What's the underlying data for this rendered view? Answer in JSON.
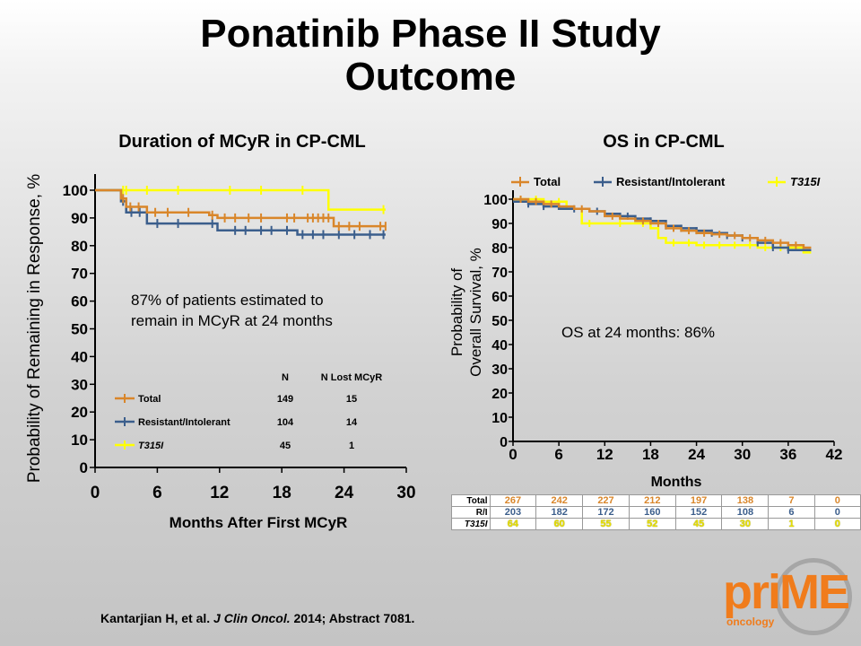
{
  "title_line1": "Ponatinib Phase II Study",
  "title_line2": "Outcome",
  "citation": {
    "authors": "Kantarjian H, et al.",
    "journal": "J Clin Oncol.",
    "rest": "2014; Abstract 7081."
  },
  "logo": {
    "text": "priME",
    "sub": "oncology"
  },
  "colors": {
    "total": "#d9862a",
    "ri": "#3b5e8c",
    "t315i": "#ffff00"
  },
  "chart_data": [
    {
      "type": "line",
      "title": "Duration of MCyR in CP-CML",
      "xlabel": "Months After First MCyR",
      "ylabel": "Probability of Remaining in Response, %",
      "xlim": [
        0,
        30
      ],
      "ylim": [
        0,
        100
      ],
      "xticks": [
        0,
        6,
        12,
        18,
        24,
        30
      ],
      "yticks": [
        0,
        10,
        20,
        30,
        40,
        50,
        60,
        70,
        80,
        90,
        100
      ],
      "annotation": "87% of patients estimated to remain in MCyR at 24 months",
      "annotation_line1": "87% of patients estimated to",
      "annotation_line2": "remain in MCyR at 24 months",
      "legend_headers": {
        "n": "N",
        "lost": "N Lost MCyR"
      },
      "series": [
        {
          "name": "Total",
          "n": "149",
          "lost": "15",
          "x": [
            0,
            2.5,
            3.0,
            5.0,
            11.0,
            11.8,
            20.0,
            23.0,
            28.0
          ],
          "y": [
            100,
            97,
            94,
            92,
            91,
            90,
            90,
            87,
            87
          ],
          "censor": [
            2.7,
            3.4,
            4.2,
            5.8,
            7.0,
            9.0,
            11.3,
            12.5,
            13.5,
            14.8,
            16.0,
            18.5,
            19.2,
            20.5,
            21.0,
            21.5,
            22.0,
            22.5,
            23.5,
            24.5,
            25.5,
            27.5,
            28.0
          ]
        },
        {
          "name": "Resistant/Intolerant",
          "n": "104",
          "lost": "14",
          "x": [
            0,
            2.5,
            3.0,
            5.0,
            11.0,
            11.8,
            19.0,
            19.5,
            28.0
          ],
          "y": [
            100,
            96,
            92,
            88,
            88,
            85.5,
            85.5,
            84,
            84
          ],
          "censor": [
            2.7,
            3.5,
            4.3,
            6.0,
            8.0,
            11.3,
            13.5,
            14.5,
            16.0,
            17.0,
            18.5,
            20.0,
            21.0,
            22.0,
            23.5,
            25.0,
            26.5,
            27.8
          ]
        },
        {
          "name": "T315I",
          "n": "45",
          "lost": "1",
          "x": [
            0,
            22.5,
            28.0
          ],
          "y": [
            100,
            93,
            93
          ],
          "censor": [
            2.7,
            3.0,
            5.0,
            8.0,
            13.0,
            16.0,
            20.0,
            27.8
          ]
        }
      ]
    },
    {
      "type": "line",
      "title": "OS in CP-CML",
      "xlabel": "Months",
      "ylabel": "Probability of Overall Survival, %",
      "ylabel_line1": "Probability of",
      "ylabel_line2": "Overall Survival, %",
      "xlim": [
        0,
        42
      ],
      "ylim": [
        0,
        100
      ],
      "xticks": [
        0,
        6,
        12,
        18,
        24,
        30,
        36,
        42
      ],
      "yticks": [
        0,
        10,
        20,
        30,
        40,
        50,
        60,
        70,
        80,
        90,
        100
      ],
      "annotation": "OS at 24 months: 86%",
      "legend": "top",
      "series": [
        {
          "name": "Total",
          "x": [
            0,
            2,
            4,
            6,
            8,
            10,
            12,
            14,
            16,
            18,
            20,
            22,
            24,
            26,
            28,
            30,
            32,
            34,
            36,
            38,
            39
          ],
          "y": [
            100,
            99,
            98,
            97,
            96,
            95,
            93,
            92,
            91,
            90,
            88,
            87,
            86,
            85.5,
            85,
            84,
            83,
            82,
            81,
            80,
            80
          ],
          "censor": [
            1,
            3,
            5,
            9,
            13,
            17,
            19,
            21,
            23,
            25,
            27,
            29,
            31,
            33,
            35,
            37
          ]
        },
        {
          "name": "Resistant/Intolerant",
          "x": [
            0,
            2,
            4,
            6,
            8,
            10,
            12,
            14,
            16,
            18,
            20,
            22,
            24,
            26,
            28,
            30,
            32,
            34,
            36,
            38,
            39
          ],
          "y": [
            99,
            98,
            97,
            96,
            96,
            95,
            94,
            93,
            92,
            91,
            89,
            88,
            87,
            86,
            85,
            84,
            82,
            80,
            79,
            79,
            79
          ],
          "censor": [
            2,
            4,
            8,
            11,
            15,
            18,
            20,
            22,
            24,
            26,
            28,
            30,
            32,
            34,
            36
          ]
        },
        {
          "name": "T315I",
          "x": [
            0,
            4,
            7,
            9,
            12,
            15,
            18,
            19,
            20,
            22,
            24,
            28,
            32,
            36,
            38,
            39
          ],
          "y": [
            100,
            99,
            96,
            90,
            90,
            90,
            88,
            84,
            82,
            82,
            81,
            81,
            80,
            80,
            78,
            78
          ],
          "censor": [
            1,
            3,
            6,
            10,
            14,
            17,
            21,
            23,
            25,
            27,
            29,
            31,
            33,
            35,
            37
          ]
        }
      ],
      "risk_table": {
        "rows": [
          {
            "label": "Total",
            "values": [
              "267",
              "242",
              "227",
              "212",
              "197",
              "138",
              "7",
              "0"
            ]
          },
          {
            "label": "R/I",
            "values": [
              "203",
              "182",
              "172",
              "160",
              "152",
              "108",
              "6",
              "0"
            ]
          },
          {
            "label": "T315I",
            "values": [
              "64",
              "60",
              "55",
              "52",
              "45",
              "30",
              "1",
              "0"
            ]
          }
        ]
      }
    }
  ]
}
